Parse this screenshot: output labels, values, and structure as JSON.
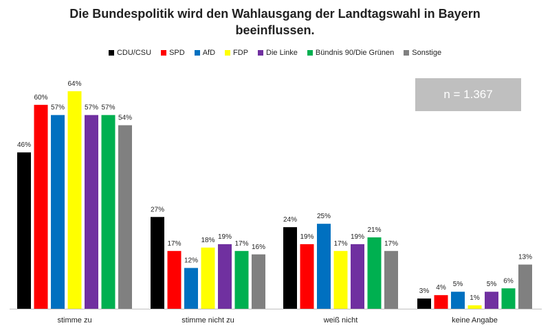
{
  "chart_data": {
    "type": "bar",
    "title_line1": "Die Bundespolitik wird den Wahlausgang der Landtagswahl in Bayern",
    "title_line2": "beeinflussen.",
    "categories": [
      "stimme zu",
      "stimme nicht zu",
      "weiß nicht",
      "keine Angabe"
    ],
    "series": [
      {
        "name": "CDU/CSU",
        "color": "#000000",
        "values": [
          46,
          27,
          24,
          3
        ],
        "labels": [
          "46%",
          "27%",
          "24%",
          "3%"
        ]
      },
      {
        "name": "SPD",
        "color": "#ff0000",
        "values": [
          60,
          17,
          19,
          4
        ],
        "labels": [
          "60%",
          "17%",
          "19%",
          "4%"
        ]
      },
      {
        "name": "AfD",
        "color": "#0070c0",
        "values": [
          57,
          12,
          25,
          5
        ],
        "labels": [
          "57%",
          "12%",
          "25%",
          "5%"
        ]
      },
      {
        "name": "FDP",
        "color": "#ffff00",
        "values": [
          64,
          18,
          17,
          1
        ],
        "labels": [
          "64%",
          "18%",
          "17%",
          "1%"
        ]
      },
      {
        "name": "Die Linke",
        "color": "#7030a0",
        "values": [
          57,
          19,
          19,
          5
        ],
        "labels": [
          "57%",
          "19%",
          "19%",
          "5%"
        ]
      },
      {
        "name": "Bündnis 90/Die Grünen",
        "color": "#00b050",
        "values": [
          57,
          17,
          21,
          6
        ],
        "labels": [
          "57%",
          "17%",
          "21%",
          "6%"
        ]
      },
      {
        "name": "Sonstige",
        "color": "#808080",
        "values": [
          54,
          16,
          17,
          13
        ],
        "labels": [
          "54%",
          "16%",
          "17%",
          "13%"
        ]
      }
    ],
    "ylim": [
      0,
      70
    ],
    "legend_position": "top",
    "grid": false
  },
  "sample_note": "n = 1.367"
}
